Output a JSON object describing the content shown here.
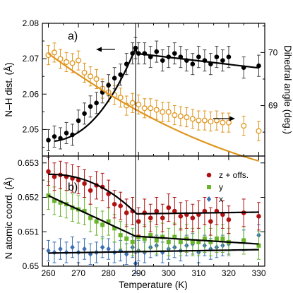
{
  "chart_data": [
    {
      "panel_label": "a)",
      "type": "scatter",
      "xlabel": "",
      "ylabel_left": "N–H dist. (Å)",
      "ylabel_right": "Dihedral angle (deg.)",
      "xlim": [
        258,
        332
      ],
      "ylim_left": [
        2.0425,
        2.08
      ],
      "ylim_right": [
        68.05,
        70.55
      ],
      "y_ticks_left": [
        "2.05",
        "2.06",
        "2.07",
        "2.08"
      ],
      "y_ticks_right": [
        "69",
        "70"
      ],
      "vline_x": 289,
      "series": [
        {
          "axis": "left",
          "marker": "filled-circle",
          "color": "#000000",
          "x": [
            260,
            262,
            264,
            266,
            268,
            270,
            272,
            274,
            276,
            278,
            280,
            282,
            284,
            286,
            288,
            289,
            290,
            292,
            294,
            296,
            298,
            300,
            302,
            304,
            306,
            308,
            310,
            312,
            314,
            316,
            318,
            320,
            325,
            330
          ],
          "y": [
            2.047,
            2.048,
            2.0475,
            2.049,
            2.0485,
            2.0525,
            2.0545,
            2.0565,
            2.0575,
            2.0605,
            2.0625,
            2.0645,
            2.0655,
            2.0685,
            2.0715,
            2.073,
            2.0715,
            2.0715,
            2.0705,
            2.072,
            2.0695,
            2.0705,
            2.0715,
            2.0705,
            2.0695,
            2.0685,
            2.0705,
            2.0695,
            2.0685,
            2.0705,
            2.0695,
            2.0705,
            2.0675,
            2.068
          ],
          "err": [
            0.003,
            0.003,
            0.003,
            0.003,
            0.003,
            0.003,
            0.003,
            0.003,
            0.003,
            0.003,
            0.003,
            0.003,
            0.003,
            0.003,
            0.003,
            0.003,
            0.003,
            0.003,
            0.003,
            0.003,
            0.003,
            0.003,
            0.003,
            0.003,
            0.003,
            0.003,
            0.003,
            0.003,
            0.003,
            0.003,
            0.003,
            0.003,
            0.003,
            0.003
          ]
        },
        {
          "axis": "right",
          "marker": "open-circle",
          "color": "#e0961e",
          "x": [
            260,
            262,
            264,
            266,
            268,
            270,
            272,
            274,
            276,
            278,
            280,
            282,
            284,
            286,
            288,
            290,
            292,
            294,
            296,
            298,
            300,
            302,
            304,
            306,
            308,
            310,
            312,
            314,
            316,
            318,
            320,
            325,
            330
          ],
          "y": [
            69.95,
            70.0,
            69.88,
            69.82,
            69.8,
            69.85,
            69.62,
            69.55,
            69.5,
            69.32,
            69.25,
            69.2,
            69.15,
            69.0,
            69.05,
            69.02,
            68.95,
            68.95,
            68.92,
            68.88,
            68.88,
            68.82,
            68.8,
            68.78,
            68.75,
            68.72,
            68.72,
            68.7,
            68.72,
            68.68,
            68.68,
            68.62,
            68.52
          ],
          "err": [
            0.18,
            0.18,
            0.18,
            0.18,
            0.18,
            0.18,
            0.18,
            0.18,
            0.18,
            0.18,
            0.18,
            0.18,
            0.18,
            0.18,
            0.18,
            0.18,
            0.18,
            0.18,
            0.18,
            0.18,
            0.18,
            0.18,
            0.18,
            0.18,
            0.18,
            0.18,
            0.18,
            0.18,
            0.18,
            0.18,
            0.18,
            0.18,
            0.18
          ]
        }
      ]
    },
    {
      "panel_label": "b)",
      "type": "scatter",
      "xlabel": "Temperature (K)",
      "ylabel": "N atomic coord. (Å)",
      "xlim": [
        258,
        332
      ],
      "ylim": [
        0.65,
        0.6532
      ],
      "x_ticks": [
        "260",
        "270",
        "280",
        "290",
        "300",
        "310",
        "320",
        "330"
      ],
      "y_ticks": [
        "0.65",
        "0.651",
        "0.652",
        "0.653"
      ],
      "vline_x": 289,
      "legend_position": "top-right",
      "series": [
        {
          "name": "z + offs.",
          "marker": "circle",
          "color": "#b01010",
          "x": [
            260,
            262,
            264,
            266,
            268,
            270,
            272,
            274,
            276,
            278,
            280,
            282,
            284,
            286,
            288,
            290,
            292,
            294,
            296,
            298,
            300,
            302,
            304,
            306,
            308,
            310,
            312,
            314,
            316,
            318,
            320,
            325,
            330
          ],
          "y": [
            0.65275,
            0.6526,
            0.65265,
            0.6526,
            0.65255,
            0.6525,
            0.6524,
            0.6522,
            0.65235,
            0.6523,
            0.6521,
            0.6518,
            0.65175,
            0.65155,
            0.6516,
            0.6513,
            0.65155,
            0.6514,
            0.6516,
            0.6514,
            0.6517,
            0.6516,
            0.65145,
            0.6515,
            0.6514,
            0.6515,
            0.6516,
            0.6513,
            0.6516,
            0.6515,
            0.65135,
            0.65155,
            0.65145
          ],
          "err": [
            0.0004,
            0.0004,
            0.0004,
            0.0004,
            0.0004,
            0.0004,
            0.0004,
            0.0004,
            0.0004,
            0.0004,
            0.0004,
            0.0004,
            0.0004,
            0.0004,
            0.0004,
            0.0004,
            0.0004,
            0.0004,
            0.0004,
            0.0004,
            0.0004,
            0.0004,
            0.0004,
            0.0004,
            0.0004,
            0.0004,
            0.0004,
            0.0004,
            0.0004,
            0.0004,
            0.0004,
            0.0004,
            0.0004
          ]
        },
        {
          "name": "y",
          "marker": "square",
          "color": "#6ab42a",
          "x": [
            260,
            262,
            264,
            266,
            268,
            270,
            272,
            274,
            276,
            278,
            280,
            282,
            284,
            286,
            288,
            290,
            292,
            294,
            296,
            298,
            300,
            302,
            304,
            306,
            308,
            310,
            312,
            314,
            316,
            318,
            320,
            325,
            330
          ],
          "y": [
            0.65205,
            0.6519,
            0.65185,
            0.6518,
            0.6517,
            0.65165,
            0.6516,
            0.6514,
            0.6513,
            0.6512,
            0.6513,
            0.6511,
            0.6509,
            0.6508,
            0.6507,
            0.65085,
            0.6508,
            0.6509,
            0.65075,
            0.65085,
            0.6507,
            0.65085,
            0.6507,
            0.6508,
            0.6507,
            0.6507,
            0.6508,
            0.6507,
            0.6508,
            0.6508,
            0.6507,
            0.65075,
            0.6506
          ],
          "err": [
            0.0004,
            0.0004,
            0.0004,
            0.0004,
            0.0004,
            0.0004,
            0.0004,
            0.0004,
            0.0004,
            0.0004,
            0.0004,
            0.0004,
            0.0004,
            0.0004,
            0.0004,
            0.0004,
            0.0004,
            0.0004,
            0.0004,
            0.0004,
            0.0004,
            0.0004,
            0.0004,
            0.0004,
            0.0004,
            0.0004,
            0.0004,
            0.0004,
            0.0004,
            0.0004,
            0.0004,
            0.0004,
            0.0004
          ]
        },
        {
          "name": "x",
          "marker": "diamond",
          "color": "#3a6fb5",
          "x": [
            260,
            262,
            264,
            266,
            268,
            270,
            272,
            274,
            276,
            278,
            280,
            282,
            284,
            286,
            288,
            289,
            290,
            292,
            294,
            296,
            298,
            300,
            302,
            304,
            306,
            308,
            310,
            312,
            314,
            316,
            318,
            320,
            325,
            330
          ],
          "y": [
            0.65045,
            0.6504,
            0.6505,
            0.6504,
            0.65055,
            0.6504,
            0.6505,
            0.65035,
            0.6504,
            0.65055,
            0.6505,
            0.6504,
            0.65045,
            0.65035,
            0.65055,
            0.65008,
            0.65045,
            0.6504,
            0.65055,
            0.6506,
            0.6504,
            0.6505,
            0.65055,
            0.65045,
            0.6506,
            0.65065,
            0.6504,
            0.6506,
            0.6505,
            0.65055,
            0.6506,
            0.65065,
            0.65075,
            0.6509
          ],
          "err": [
            0.0003,
            0.0003,
            0.0003,
            0.0003,
            0.0003,
            0.0003,
            0.0003,
            0.0003,
            0.0003,
            0.0003,
            0.0003,
            0.0003,
            0.0003,
            0.0003,
            0.0003,
            0.0003,
            0.0003,
            0.0003,
            0.0003,
            0.0003,
            0.0003,
            0.0003,
            0.0003,
            0.0003,
            0.0003,
            0.0003,
            0.0003,
            0.0003,
            0.0003,
            0.0003,
            0.0003,
            0.0003,
            0.0003,
            0.0003
          ]
        }
      ]
    }
  ]
}
